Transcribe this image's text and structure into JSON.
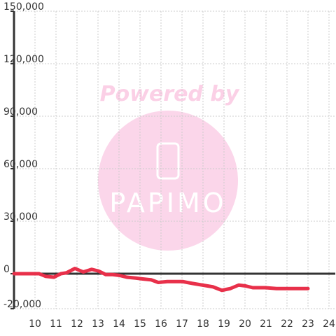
{
  "chart_data": {
    "type": "line",
    "watermark": {
      "top": "Powered by",
      "brand": "PAPIMO"
    },
    "x": [
      9.0,
      10.2,
      10.5,
      10.9,
      11.23,
      11.5,
      11.9,
      12.3,
      12.7,
      13.03,
      13.37,
      13.7,
      14.03,
      14.37,
      14.8,
      15.13,
      15.53,
      15.87,
      16.3,
      17.03,
      17.47,
      17.97,
      18.47,
      18.9,
      19.3,
      19.7,
      20.03,
      20.37,
      20.97,
      21.5,
      23.0
    ],
    "series": [
      {
        "color": "#e8304a",
        "values": [
          0,
          0,
          -1500,
          -2000,
          0,
          500,
          3000,
          1000,
          2500,
          1500,
          -500,
          -500,
          -1000,
          -2000,
          -2500,
          -3000,
          -3500,
          -5000,
          -4500,
          -4500,
          -5500,
          -6500,
          -7500,
          -9500,
          -8500,
          -6500,
          -7000,
          -8000,
          -8000,
          -8500,
          -8500
        ]
      }
    ],
    "xlim": [
      9,
      24.3
    ],
    "xticks": [
      10,
      11,
      12,
      13,
      14,
      15,
      16,
      17,
      18,
      19,
      20,
      21,
      22,
      23,
      24
    ],
    "ylim": [
      -20000,
      150000
    ],
    "yticks": [
      {
        "value": -20000,
        "label": "-20,000"
      },
      0,
      {
        "value": 30000,
        "label": "30,000"
      },
      {
        "value": 60000,
        "label": "60,000"
      },
      {
        "value": 90000,
        "label": "90,000"
      },
      {
        "value": 120000,
        "label": "120,000"
      },
      {
        "value": 150000,
        "label": "150,000"
      }
    ],
    "grid": true
  }
}
